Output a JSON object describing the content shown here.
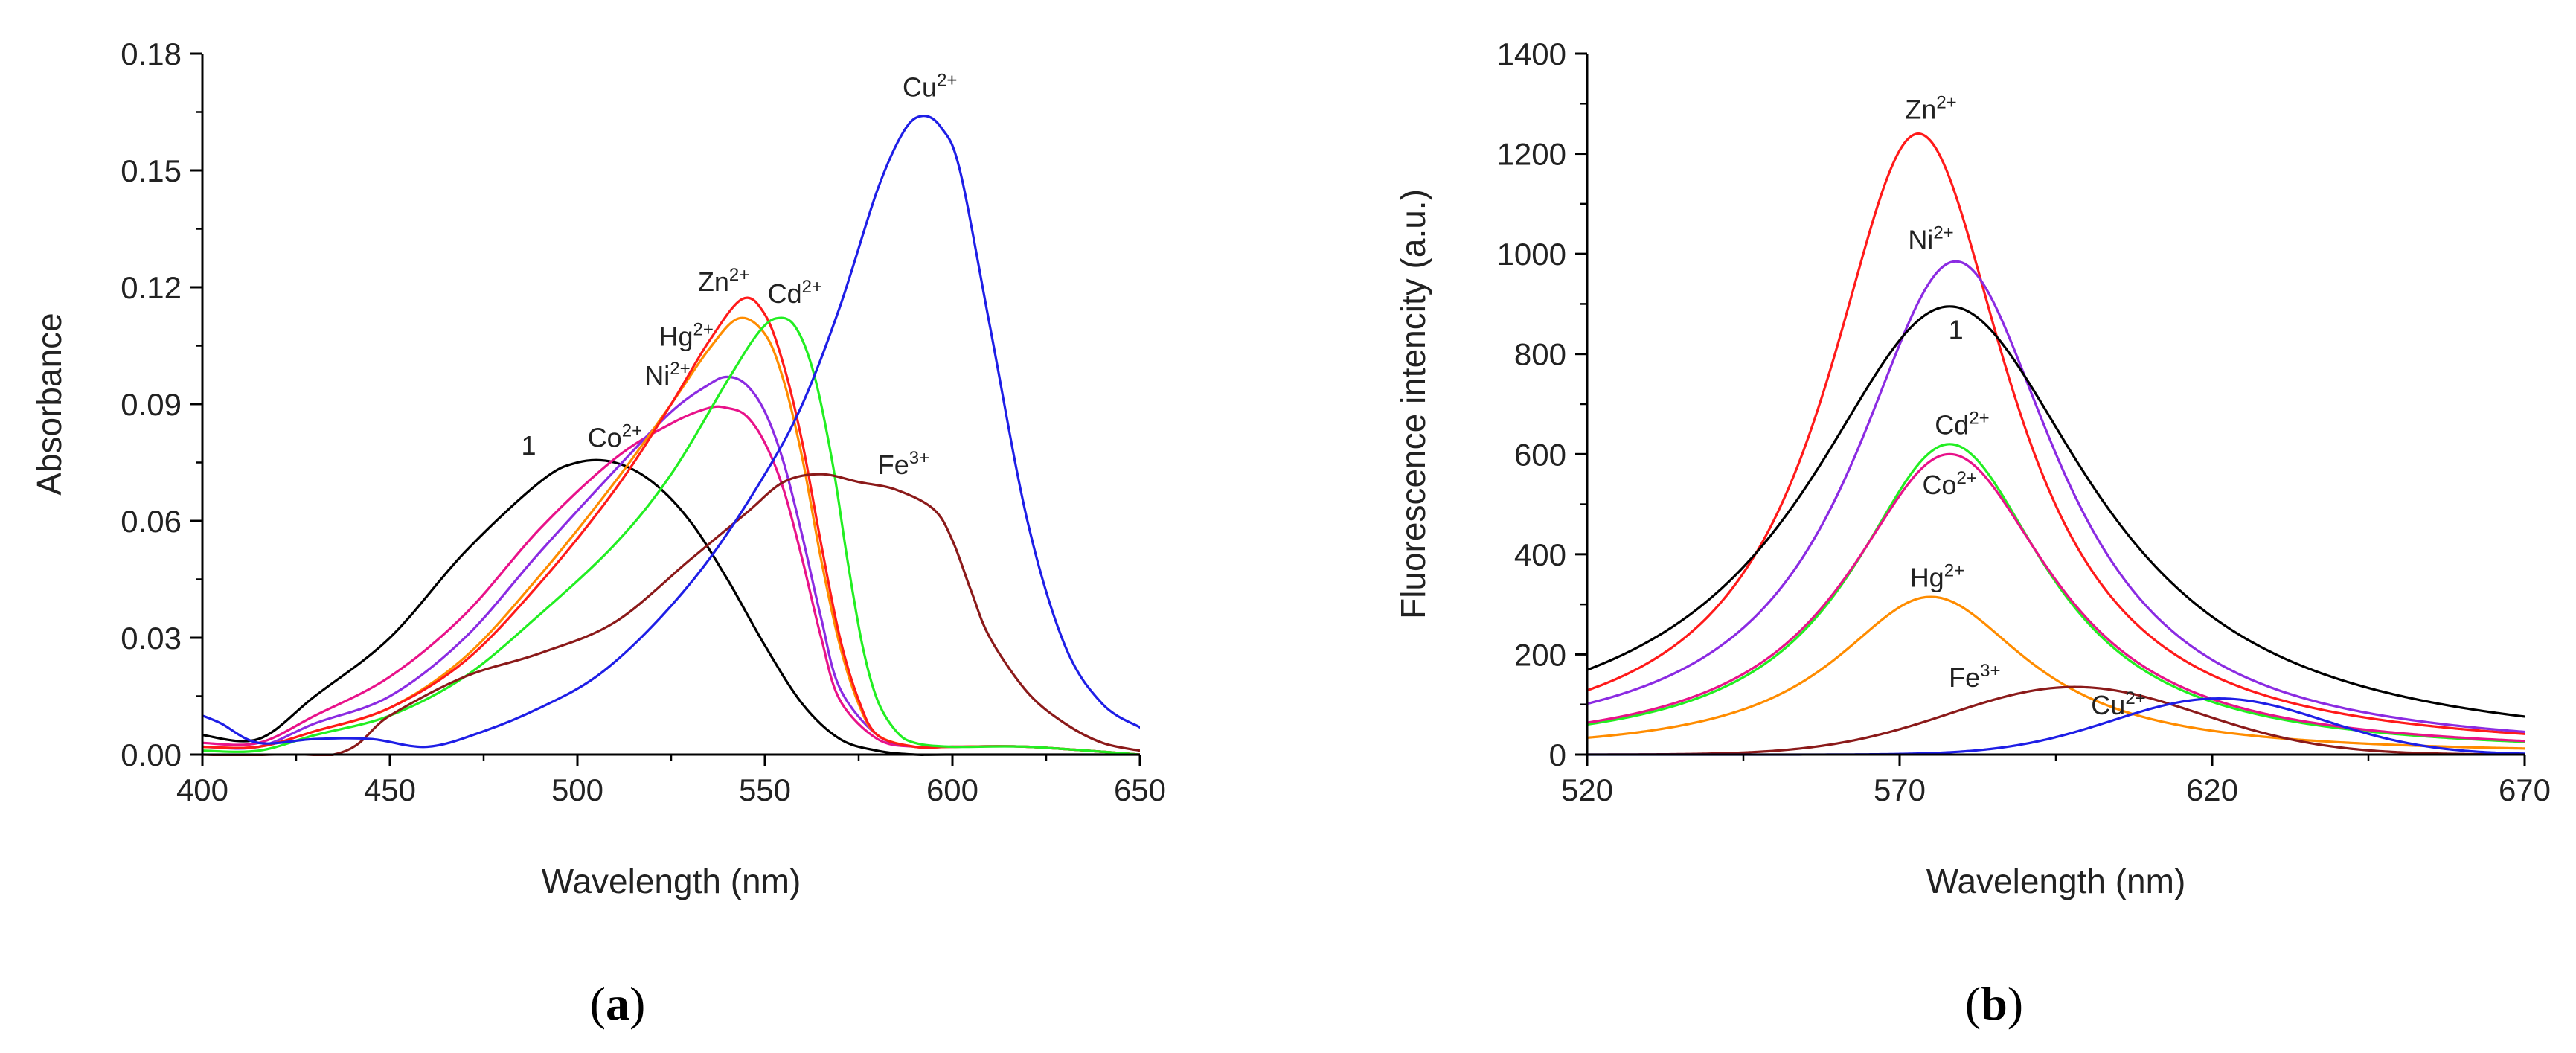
{
  "panels": [
    {
      "panel_label": "a",
      "chart_data": {
        "type": "line",
        "title": "",
        "xlabel": "Wavelength (nm)",
        "ylabel": "Absorbance",
        "xlim": [
          400,
          650
        ],
        "ylim": [
          0,
          0.18
        ],
        "xticks": [
          400,
          450,
          500,
          550,
          600,
          650
        ],
        "xtick_labels": [
          "400",
          "450",
          "500",
          "550",
          "600",
          "650"
        ],
        "yticks": [
          0,
          0.03,
          0.06,
          0.09,
          0.12,
          0.15,
          0.18
        ],
        "ytick_labels": [
          "0.00",
          "0.03",
          "0.06",
          "0.09",
          "0.12",
          "0.15",
          "0.18"
        ],
        "grid": false,
        "series": [
          {
            "name": "1",
            "label_main": "1",
            "label_sup": "",
            "color": "#000000",
            "x": [
              400,
              415,
              430,
              450,
              470,
              490,
              500,
              510,
              520,
              530,
              540,
              550,
              560,
              570,
              580,
              590,
              600,
              650
            ],
            "y": [
              0.005,
              0.004,
              0.015,
              0.03,
              0.052,
              0.07,
              0.075,
              0.075,
              0.07,
              0.06,
              0.045,
              0.028,
              0.013,
              0.004,
              0.001,
              0,
              0,
              0
            ]
          },
          {
            "name": "Co2+",
            "label_main": "Co",
            "label_sup": "2+",
            "color": "#E8128A",
            "x": [
              400,
              415,
              430,
              450,
              470,
              490,
              510,
              525,
              535,
              540,
              545,
              550,
              555,
              560,
              565,
              570,
              580,
              590,
              600,
              620,
              650
            ],
            "y": [
              0.003,
              0.003,
              0.01,
              0.02,
              0.036,
              0.058,
              0.076,
              0.085,
              0.089,
              0.089,
              0.087,
              0.08,
              0.068,
              0.05,
              0.03,
              0.014,
              0.004,
              0.002,
              0.002,
              0.002,
              0.0
            ]
          },
          {
            "name": "Ni2+",
            "label_main": "Ni",
            "label_sup": "2+",
            "color": "#8B2BE2",
            "x": [
              400,
              415,
              430,
              450,
              470,
              490,
              510,
              525,
              535,
              540,
              545,
              550,
              555,
              560,
              565,
              570,
              580,
              590,
              600,
              620,
              650
            ],
            "y": [
              0.002,
              0.002,
              0.008,
              0.015,
              0.03,
              0.052,
              0.073,
              0.088,
              0.095,
              0.097,
              0.095,
              0.088,
              0.075,
              0.056,
              0.035,
              0.017,
              0.005,
              0.002,
              0.002,
              0.002,
              0.0
            ]
          },
          {
            "name": "Hg2+",
            "label_main": "Hg",
            "label_sup": "2+",
            "color": "#FF8C00",
            "x": [
              400,
              415,
              430,
              450,
              470,
              490,
              510,
              525,
              535,
              543,
              550,
              555,
              560,
              565,
              570,
              575,
              580,
              590,
              600,
              620,
              650
            ],
            "y": [
              0.002,
              0.002,
              0.006,
              0.012,
              0.025,
              0.046,
              0.07,
              0.09,
              0.104,
              0.112,
              0.108,
              0.096,
              0.076,
              0.05,
              0.028,
              0.013,
              0.005,
              0.002,
              0.002,
              0.002,
              0.0
            ]
          },
          {
            "name": "Zn2+",
            "label_main": "Zn",
            "label_sup": "2+",
            "color": "#FF1A1A",
            "x": [
              400,
              415,
              430,
              450,
              470,
              490,
              510,
              525,
              535,
              544,
              550,
              555,
              560,
              565,
              570,
              575,
              580,
              590,
              600,
              620,
              650
            ],
            "y": [
              0.002,
              0.002,
              0.006,
              0.012,
              0.024,
              0.044,
              0.068,
              0.09,
              0.106,
              0.117,
              0.113,
              0.1,
              0.08,
              0.054,
              0.03,
              0.014,
              0.005,
              0.002,
              0.002,
              0.002,
              0.0
            ]
          },
          {
            "name": "Cd2+",
            "label_main": "Cd",
            "label_sup": "2+",
            "color": "#22EE22",
            "x": [
              400,
              415,
              430,
              450,
              470,
              490,
              510,
              525,
              540,
              548,
              553,
              558,
              563,
              568,
              572,
              576,
              580,
              585,
              590,
              600,
              620,
              650
            ],
            "y": [
              0.001,
              0.001,
              0.005,
              0.01,
              0.02,
              0.036,
              0.054,
              0.072,
              0.096,
              0.108,
              0.112,
              0.11,
              0.098,
              0.075,
              0.05,
              0.028,
              0.014,
              0.006,
              0.003,
              0.002,
              0.002,
              0.0
            ]
          },
          {
            "name": "Fe3+",
            "label_main": "Fe",
            "label_sup": "3+",
            "color": "#8B1A1A",
            "x": [
              400,
              435,
              450,
              470,
              490,
              510,
              530,
              545,
              555,
              565,
              575,
              585,
              595,
              600,
              605,
              610,
              620,
              630,
              640,
              650
            ],
            "y": [
              0.0,
              0.0,
              0.01,
              0.02,
              0.026,
              0.034,
              0.05,
              0.062,
              0.07,
              0.072,
              0.07,
              0.068,
              0.063,
              0.055,
              0.042,
              0.03,
              0.016,
              0.008,
              0.003,
              0.001
            ]
          },
          {
            "name": "Cu2+",
            "label_main": "Cu",
            "label_sup": "2+",
            "color": "#1E1EE6",
            "x": [
              400,
              405,
              415,
              430,
              445,
              460,
              475,
              490,
              505,
              520,
              535,
              550,
              560,
              570,
              580,
              587,
              592,
              597,
              602,
              610,
              620,
              630,
              640,
              650
            ],
            "y": [
              0.01,
              0.008,
              0.003,
              0.004,
              0.004,
              0.002,
              0.006,
              0.012,
              0.02,
              0.033,
              0.05,
              0.072,
              0.09,
              0.115,
              0.145,
              0.16,
              0.164,
              0.161,
              0.15,
              0.11,
              0.06,
              0.028,
              0.013,
              0.007
            ]
          }
        ],
        "annotations": [
          {
            "series": "1",
            "x": 487,
            "y": 0.077
          },
          {
            "series": "Co2+",
            "x": 510,
            "y": 0.079
          },
          {
            "series": "Ni2+",
            "x": 524,
            "y": 0.095
          },
          {
            "series": "Hg2+",
            "x": 529,
            "y": 0.105
          },
          {
            "series": "Zn2+",
            "x": 539,
            "y": 0.119
          },
          {
            "series": "Cd2+",
            "x": 558,
            "y": 0.116
          },
          {
            "series": "Fe3+",
            "x": 587,
            "y": 0.072
          },
          {
            "series": "Cu2+",
            "x": 594,
            "y": 0.169
          }
        ]
      }
    },
    {
      "panel_label": "b",
      "chart_data": {
        "type": "line",
        "title": "",
        "xlabel": "Wavelength (nm)",
        "ylabel": "Fluorescence intencity (a.u.)",
        "xlim": [
          520,
          670
        ],
        "ylim": [
          0,
          1400
        ],
        "xticks": [
          520,
          570,
          620,
          670
        ],
        "xtick_labels": [
          "520",
          "570",
          "620",
          "670"
        ],
        "yticks": [
          0,
          200,
          400,
          600,
          800,
          1000,
          1200,
          1400
        ],
        "ytick_labels": [
          "0",
          "200",
          "400",
          "600",
          "800",
          "1000",
          "1200",
          "1400"
        ],
        "grid": false,
        "series": [
          {
            "name": "Zn2+",
            "label_main": "Zn",
            "label_sup": "2+",
            "color": "#FF1A1A",
            "model": "lorentz",
            "center": 573,
            "peak": 1240,
            "hwhm": 18
          },
          {
            "name": "Ni2+",
            "label_main": "Ni",
            "label_sup": "2+",
            "color": "#8B2BE2",
            "model": "lorentz",
            "center": 579,
            "peak": 985,
            "hwhm": 20
          },
          {
            "name": "1",
            "label_main": "1",
            "label_sup": "",
            "color": "#000000",
            "model": "lorentz",
            "center": 578,
            "peak": 895,
            "hwhm": 28
          },
          {
            "name": "Cd2+",
            "label_main": "Cd",
            "label_sup": "2+",
            "color": "#22EE22",
            "model": "lorentz",
            "center": 578,
            "peak": 620,
            "hwhm": 19
          },
          {
            "name": "Co2+",
            "label_main": "Co",
            "label_sup": "2+",
            "color": "#E8128A",
            "model": "lorentz",
            "center": 578,
            "peak": 600,
            "hwhm": 20
          },
          {
            "name": "Hg2+",
            "label_main": "Hg",
            "label_sup": "2+",
            "color": "#FF8C00",
            "model": "lorentz",
            "center": 575,
            "peak": 315,
            "hwhm": 19
          },
          {
            "name": "Fe3+",
            "label_main": "Fe",
            "label_sup": "3+",
            "color": "#8B1A1A",
            "model": "gauss",
            "center": 598,
            "peak": 135,
            "sigma": 20
          },
          {
            "name": "Cu2+",
            "label_main": "Cu",
            "label_sup": "2+",
            "color": "#1E1EE6",
            "model": "gauss",
            "center": 621,
            "peak": 112,
            "sigma": 17
          }
        ],
        "annotations": [
          {
            "series": "Zn2+",
            "x": 575,
            "y": 1270
          },
          {
            "series": "Ni2+",
            "x": 575,
            "y": 1010
          },
          {
            "series": "1",
            "x": 579,
            "y": 830
          },
          {
            "series": "Cd2+",
            "x": 580,
            "y": 640
          },
          {
            "series": "Co2+",
            "x": 578,
            "y": 520
          },
          {
            "series": "Hg2+",
            "x": 576,
            "y": 335
          },
          {
            "series": "Fe3+",
            "x": 582,
            "y": 135
          },
          {
            "series": "Cu2+",
            "x": 605,
            "y": 80
          }
        ]
      }
    }
  ]
}
